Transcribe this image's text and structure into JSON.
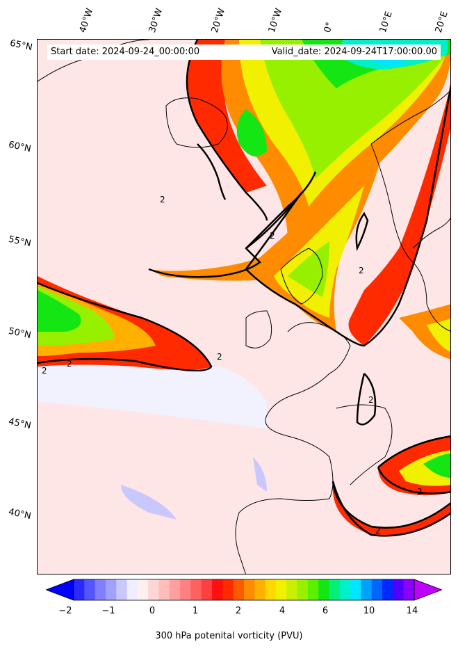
{
  "map": {
    "start_date": "Start date: 2024-09-24_00:00:00",
    "valid_date": "Valid_date: 2024-09-24T17:00:00.00",
    "longitude_labels": [
      "40°W",
      "30°W",
      "20°W",
      "10°W",
      "0°",
      "10°E",
      "20°E"
    ],
    "latitude_labels": [
      "65°N",
      "60°N",
      "55°N",
      "50°N",
      "45°N",
      "40°N"
    ],
    "contour_value_label": "2"
  },
  "colorbar": {
    "title": "300 hPa potenital vorticity (PVU)",
    "tick_labels": [
      "−2",
      "−1",
      "0",
      "1",
      "2",
      "4",
      "6",
      "10",
      "14"
    ],
    "colors": [
      "#0000ff",
      "#2a2aff",
      "#5555ff",
      "#7f7fff",
      "#a0a0ff",
      "#c8c8ff",
      "#eeeeff",
      "#fff0f0",
      "#ffd6d6",
      "#ffbcbc",
      "#ffa0a0",
      "#ff8080",
      "#ff6060",
      "#ff4040",
      "#ff1010",
      "#ff2a00",
      "#ff5a00",
      "#ff8c00",
      "#ffb000",
      "#ffd800",
      "#f0f000",
      "#c8f000",
      "#96f000",
      "#5af000",
      "#14e614",
      "#00f07a",
      "#00f0c8",
      "#00e6ff",
      "#00a0ff",
      "#0064ff",
      "#0028ff",
      "#5000ff",
      "#8c00ff",
      "#be00ff"
    ]
  }
}
